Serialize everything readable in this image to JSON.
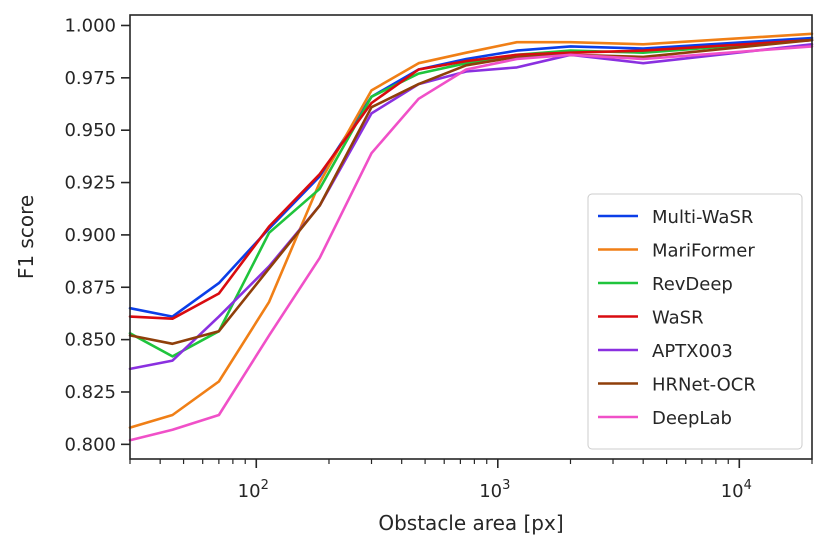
{
  "chart_data": {
    "type": "line",
    "xlabel": "Obstacle area [px]",
    "ylabel": "F1 score",
    "xscale": "log",
    "xlim": [
      30,
      20000
    ],
    "ylim": [
      0.793,
      1.005
    ],
    "x_major_ticks": [
      {
        "value": 100,
        "base": "10",
        "exp": "2"
      },
      {
        "value": 1000,
        "base": "10",
        "exp": "3"
      },
      {
        "value": 10000,
        "base": "10",
        "exp": "4"
      }
    ],
    "yticks": [
      0.8,
      0.825,
      0.85,
      0.875,
      0.9,
      0.925,
      0.95,
      0.975,
      1.0
    ],
    "ytick_labels": [
      "0.800",
      "0.825",
      "0.850",
      "0.875",
      "0.900",
      "0.925",
      "0.950",
      "0.975",
      "1.000"
    ],
    "grid": false,
    "legend_position": "lower-right",
    "x": [
      30,
      45,
      70,
      113,
      183,
      300,
      470,
      740,
      1200,
      2000,
      4000,
      20000
    ],
    "series": [
      {
        "name": "Multi-WaSR",
        "color": "#0b3ee8",
        "values": [
          0.865,
          0.861,
          0.877,
          0.903,
          0.928,
          0.966,
          0.979,
          0.984,
          0.988,
          0.99,
          0.989,
          0.994
        ]
      },
      {
        "name": "MariFormer",
        "color": "#f07f16",
        "values": [
          0.808,
          0.814,
          0.83,
          0.868,
          0.925,
          0.969,
          0.982,
          0.987,
          0.992,
          0.992,
          0.991,
          0.996
        ]
      },
      {
        "name": "RevDeep",
        "color": "#1fc43c",
        "values": [
          0.853,
          0.842,
          0.854,
          0.901,
          0.922,
          0.966,
          0.977,
          0.982,
          0.986,
          0.988,
          0.987,
          0.993
        ]
      },
      {
        "name": "WaSR",
        "color": "#d90b10",
        "values": [
          0.861,
          0.86,
          0.872,
          0.904,
          0.929,
          0.963,
          0.979,
          0.983,
          0.986,
          0.987,
          0.988,
          0.993
        ]
      },
      {
        "name": "APTX003",
        "color": "#8a30e0",
        "values": [
          0.836,
          0.84,
          0.861,
          0.885,
          0.914,
          0.958,
          0.972,
          0.978,
          0.98,
          0.986,
          0.982,
          0.991
        ]
      },
      {
        "name": "HRNet-OCR",
        "color": "#8f3f0a",
        "values": [
          0.852,
          0.848,
          0.854,
          0.884,
          0.914,
          0.961,
          0.972,
          0.981,
          0.985,
          0.986,
          0.985,
          0.993
        ]
      },
      {
        "name": "DeepLab",
        "color": "#f050c8",
        "values": [
          0.802,
          0.807,
          0.814,
          0.852,
          0.889,
          0.939,
          0.965,
          0.979,
          0.984,
          0.986,
          0.984,
          0.99
        ]
      }
    ]
  }
}
